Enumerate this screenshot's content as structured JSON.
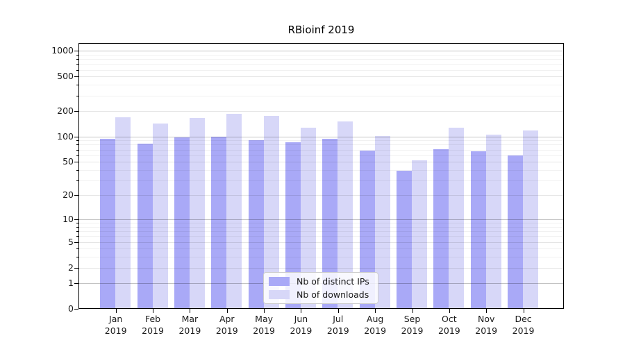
{
  "chart_data": {
    "type": "bar",
    "title": "RBioinf 2019",
    "y_scale": "log1p",
    "y_max": 1230,
    "y_ticks": [
      0,
      1,
      2,
      5,
      10,
      20,
      50,
      100,
      200,
      500,
      1000
    ],
    "y_major_gridlines": [
      1,
      10,
      100,
      1000
    ],
    "y_labeled_gridlines": [
      2,
      5,
      20,
      50,
      200,
      500
    ],
    "y_minor_gridlines": [
      3,
      4,
      6,
      7,
      8,
      9,
      30,
      40,
      60,
      70,
      80,
      90,
      300,
      400,
      600,
      700,
      800,
      900
    ],
    "x_year": "2019",
    "categories": [
      "Jan",
      "Feb",
      "Mar",
      "Apr",
      "May",
      "Jun",
      "Jul",
      "Aug",
      "Sep",
      "Oct",
      "Nov",
      "Dec"
    ],
    "series": [
      {
        "name": "Nb of distinct IPs",
        "color": "#a9a9f7",
        "values": [
          93,
          82,
          97,
          100,
          91,
          86,
          94,
          68,
          39,
          71,
          67,
          60
        ]
      },
      {
        "name": "Nb of downloads",
        "color": "#d7d7f8",
        "values": [
          167,
          141,
          164,
          184,
          175,
          126,
          150,
          101,
          52,
          127,
          104,
          117
        ]
      }
    ],
    "legend_position": "lower center",
    "grid": true,
    "colors": {
      "spine": "#000000",
      "text": "#1a1a1a"
    }
  }
}
